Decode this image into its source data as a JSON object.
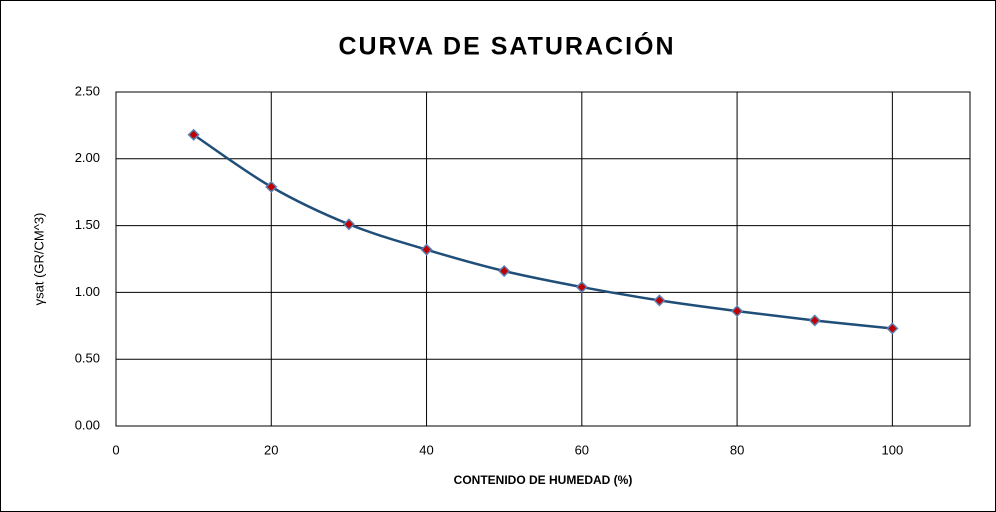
{
  "chart_data": {
    "type": "line",
    "title": "CURVA DE SATURACIÓN",
    "x_label": "CONTENIDO DE HUMEDAD (%)",
    "y_label": "γsat (GR/CM^3)",
    "x": [
      10,
      20,
      30,
      40,
      50,
      60,
      70,
      80,
      90,
      100
    ],
    "series": [
      {
        "color": "#1f4e79",
        "marker_color": "#c00000",
        "values": [
          2.18,
          1.79,
          1.51,
          1.32,
          1.16,
          1.04,
          0.94,
          0.86,
          0.79,
          0.73
        ]
      }
    ],
    "xlim": [
      0,
      110
    ],
    "xticks": [
      0,
      20,
      40,
      60,
      80,
      100
    ],
    "ylim": [
      0,
      2.5
    ],
    "yticks": [
      {
        "value": 0,
        "label": "0.00"
      },
      {
        "value": 0.5,
        "label": "0.50"
      },
      {
        "value": 1,
        "label": "1.00"
      },
      {
        "value": 1.5,
        "label": "1.50"
      },
      {
        "value": 2,
        "label": "2.00"
      },
      {
        "value": 2.5,
        "label": "2.50"
      }
    ],
    "grid": true
  }
}
